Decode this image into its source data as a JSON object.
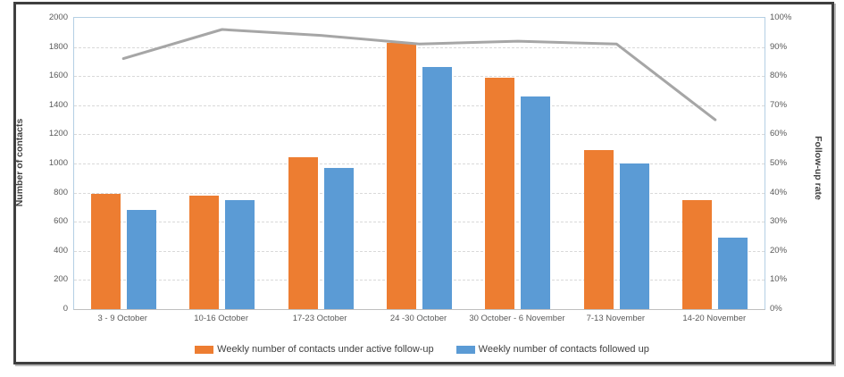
{
  "chart_data": {
    "type": "bar",
    "subtype": "grouped-bars-with-line",
    "categories": [
      "3 - 9 October",
      "10-16 October",
      "17-23 October",
      "24 -30 October",
      "30 October - 6 November",
      "7-13 November",
      "14-20 November"
    ],
    "series": [
      {
        "name": "Weekly number of contacts under active follow-up",
        "type": "bar",
        "axis": "left",
        "color": "#ED7D31",
        "values": [
          790,
          780,
          1040,
          1830,
          1590,
          1090,
          750
        ]
      },
      {
        "name": "Weekly number of contacts followed up",
        "type": "bar",
        "axis": "left",
        "color": "#5B9BD5",
        "values": [
          680,
          750,
          970,
          1660,
          1460,
          1000,
          490
        ]
      },
      {
        "name": "Follow-up rate",
        "type": "line",
        "axis": "right",
        "color": "#A6A6A6",
        "values_percent": [
          86,
          96,
          94,
          91,
          92,
          91,
          65
        ]
      }
    ],
    "title": "",
    "xlabel": "",
    "left_axis": {
      "title": "Number of contacts",
      "min": 0,
      "max": 2000,
      "step": 200,
      "tick_labels": [
        "0",
        "200",
        "400",
        "600",
        "800",
        "1000",
        "1200",
        "1400",
        "1600",
        "1800",
        "2000"
      ]
    },
    "right_axis": {
      "title": "Follow-up rate",
      "min": 0,
      "max": 100,
      "step": 10,
      "tick_labels": [
        "0%",
        "10%",
        "20%",
        "30%",
        "40%",
        "50%",
        "60%",
        "70%",
        "80%",
        "90%",
        "100%"
      ]
    },
    "grid": true,
    "legend_position": "bottom",
    "legend": [
      {
        "label": "Weekly number of contacts under active follow-up",
        "color": "#ED7D31"
      },
      {
        "label": "Weekly number of contacts followed up",
        "color": "#5B9BD5"
      }
    ]
  },
  "style": {
    "bar_orange": "#ED7D31",
    "bar_blue": "#5B9BD5",
    "line_gray": "#A6A6A6",
    "gridline": "#D9D9D9",
    "plot_border_blue": "#B4CFE4",
    "axis_text": "#595959",
    "frame_border": "#3F3F3F"
  }
}
